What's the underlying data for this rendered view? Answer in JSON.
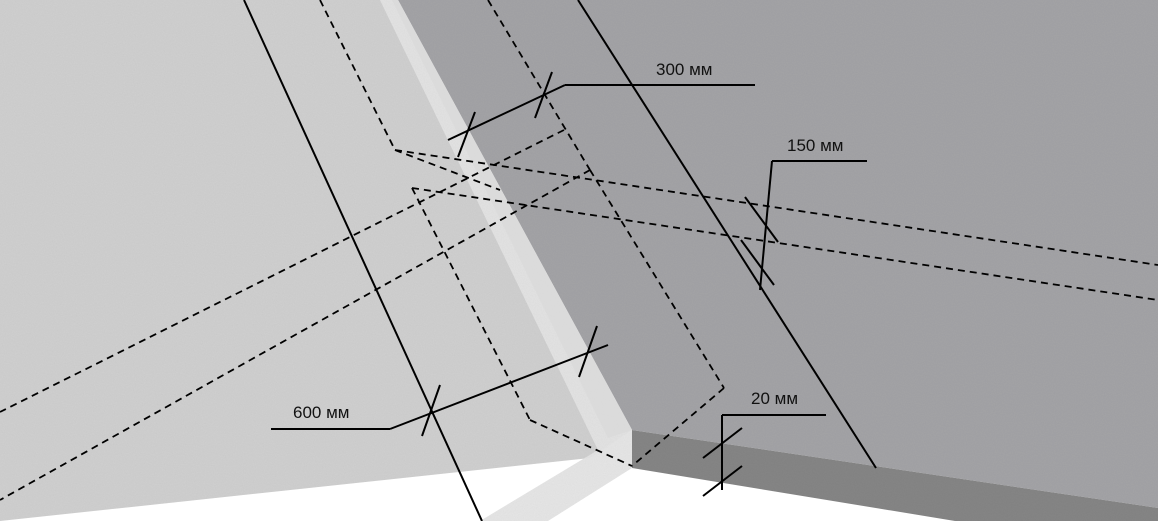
{
  "colors": {
    "light_panel": "#cfcfcf",
    "dark_panel": "#a3a3a6",
    "edge_face_light": "#e6e6e6",
    "edge_face_dark": "#858585",
    "background": "#ffffff",
    "line": "#000000"
  },
  "dimensions": {
    "d300": "300 мм",
    "d150": "150 мм",
    "d600": "600 мм",
    "d20": "20 мм"
  }
}
